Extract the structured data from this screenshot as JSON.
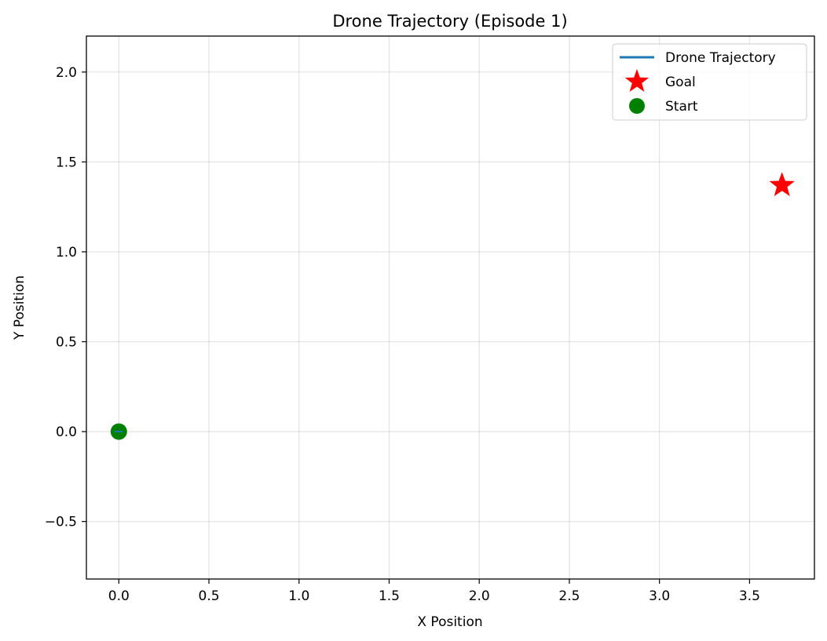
{
  "chart_data": {
    "type": "scatter",
    "title": "Drone Trajectory (Episode 1)",
    "xlabel": "X Position",
    "ylabel": "Y Position",
    "xlim": [
      -0.18,
      3.86
    ],
    "ylim": [
      -0.82,
      2.2
    ],
    "xticks": [
      0.0,
      0.5,
      1.0,
      1.5,
      2.0,
      2.5,
      3.0,
      3.5
    ],
    "xtick_labels": [
      "0.0",
      "0.5",
      "1.0",
      "1.5",
      "2.0",
      "2.5",
      "3.0",
      "3.5"
    ],
    "yticks": [
      -0.5,
      0.0,
      0.5,
      1.0,
      1.5,
      2.0
    ],
    "ytick_labels": [
      "−0.5",
      "0.0",
      "0.5",
      "1.0",
      "1.5",
      "2.0"
    ],
    "grid": true,
    "legend_position": "top-right",
    "series": [
      {
        "name": "Drone Trajectory",
        "kind": "line",
        "color": "#1f77b4",
        "points": [
          [
            0.0,
            0.0
          ],
          [
            0.0,
            0.0
          ]
        ]
      },
      {
        "name": "Goal",
        "kind": "star-marker",
        "color": "#ff0000",
        "points": [
          [
            3.68,
            1.37
          ]
        ]
      },
      {
        "name": "Start",
        "kind": "circle-marker",
        "color": "#008000",
        "points": [
          [
            0.0,
            0.0
          ]
        ]
      }
    ]
  }
}
